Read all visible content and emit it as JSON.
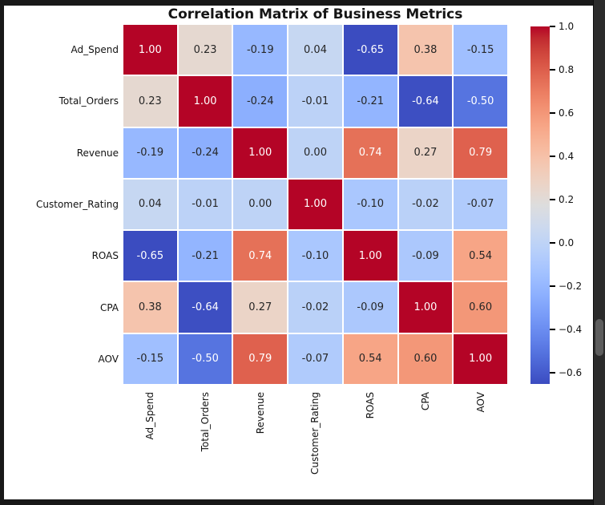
{
  "window": {
    "frame_color": "#181818",
    "scrollbar": {
      "track_color": "#2b2b2b",
      "thumb_color": "#5d5d5d"
    }
  },
  "figure": {
    "background": "#ffffff"
  },
  "chart_data": {
    "type": "heatmap",
    "title": "Correlation Matrix of Business Metrics",
    "categories": [
      "Ad_Spend",
      "Total_Orders",
      "Revenue",
      "Customer_Rating",
      "ROAS",
      "CPA",
      "AOV"
    ],
    "matrix": [
      [
        1.0,
        0.23,
        -0.19,
        0.04,
        -0.65,
        0.38,
        -0.15
      ],
      [
        0.23,
        1.0,
        -0.24,
        -0.01,
        -0.21,
        -0.64,
        -0.5
      ],
      [
        -0.19,
        -0.24,
        1.0,
        0.0,
        0.74,
        0.27,
        0.79
      ],
      [
        0.04,
        -0.01,
        0.0,
        1.0,
        -0.1,
        -0.02,
        -0.07
      ],
      [
        -0.65,
        -0.21,
        0.74,
        -0.1,
        1.0,
        -0.09,
        0.54
      ],
      [
        0.38,
        -0.64,
        0.27,
        -0.02,
        -0.09,
        1.0,
        0.6
      ],
      [
        -0.15,
        -0.5,
        0.79,
        -0.07,
        0.54,
        0.6,
        1.0
      ]
    ],
    "value_format": ".2f",
    "colormap": "coolwarm",
    "vmin": -0.65,
    "vmax": 1.0,
    "cell_gridline_color": "#ffffff",
    "annotation_dark_text_color": "#262626",
    "annotation_light_text_color": "#ffffff",
    "x_tick_rotation": 90,
    "colorbar": {
      "position": "right",
      "tick_values": [
        1.0,
        0.8,
        0.6,
        0.4,
        0.2,
        0.0,
        -0.2,
        -0.4,
        -0.6
      ],
      "tick_labels": [
        "1.0",
        "0.8",
        "0.6",
        "0.4",
        "0.2",
        "0.0",
        "−0.2",
        "−0.4",
        "−0.6"
      ]
    }
  }
}
